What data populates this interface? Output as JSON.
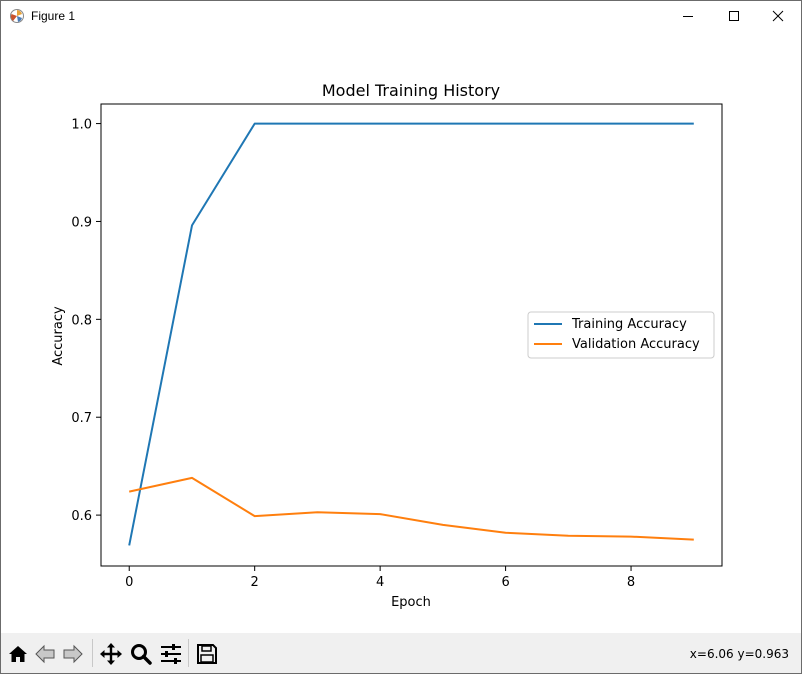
{
  "window": {
    "title": "Figure 1",
    "controls": {
      "minimize": "minimize-icon",
      "maximize": "maximize-icon",
      "close": "close-icon"
    }
  },
  "toolbar": {
    "tools": [
      "home-icon",
      "back-icon",
      "forward-icon",
      "pan-icon",
      "zoom-icon",
      "configure-subplots-icon",
      "save-icon"
    ],
    "coords": "x=6.06 y=0.963"
  },
  "chart_data": {
    "type": "line",
    "title": "Model Training History",
    "xlabel": "Epoch",
    "ylabel": "Accuracy",
    "x": [
      0,
      1,
      2,
      3,
      4,
      5,
      6,
      7,
      8,
      9
    ],
    "xlim": [
      -0.45,
      9.45
    ],
    "ylim": [
      0.548,
      1.02
    ],
    "xticks": [
      0,
      2,
      4,
      6,
      8
    ],
    "yticks": [
      0.6,
      0.7,
      0.8,
      0.9,
      1.0
    ],
    "xtick_labels": [
      "0",
      "2",
      "4",
      "6",
      "8"
    ],
    "ytick_labels": [
      "0.6",
      "0.7",
      "0.8",
      "0.9",
      "1.0"
    ],
    "grid": false,
    "legend_position": "center-right",
    "series": [
      {
        "name": "Training Accuracy",
        "color": "#1f77b4",
        "values": [
          0.569,
          0.896,
          1.0,
          1.0,
          1.0,
          1.0,
          1.0,
          1.0,
          1.0,
          1.0
        ]
      },
      {
        "name": "Validation Accuracy",
        "color": "#ff7f0e",
        "values": [
          0.624,
          0.638,
          0.599,
          0.603,
          0.601,
          0.59,
          0.582,
          0.579,
          0.578,
          0.575
        ]
      }
    ]
  }
}
